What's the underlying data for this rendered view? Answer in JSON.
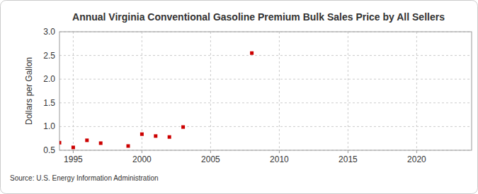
{
  "chart_data": {
    "type": "scatter",
    "title": "Annual Virginia Conventional Gasoline Premium Bulk Sales Price by All Sellers",
    "y_label": "Dollars per Gallon",
    "source": "Source: U.S. Energy Information Administration",
    "x": [
      1994,
      1995,
      1996,
      1997,
      1999,
      2000,
      2001,
      2002,
      2003,
      2008
    ],
    "values": [
      0.66,
      0.56,
      0.71,
      0.65,
      0.59,
      0.84,
      0.8,
      0.78,
      0.99,
      2.55
    ],
    "color": "#cc0000",
    "marker": "square",
    "xlim": [
      1994,
      2024
    ],
    "xticks": [
      1995,
      2000,
      2005,
      2010,
      2015,
      2020
    ],
    "ylim": [
      0.5,
      3.0
    ],
    "yticks": [
      0.5,
      {
        "value": 1,
        "label": "1.0"
      },
      1.5,
      {
        "value": 2,
        "label": "2.0"
      },
      2.5,
      {
        "value": 3,
        "label": "3.0"
      }
    ],
    "grid": true
  }
}
